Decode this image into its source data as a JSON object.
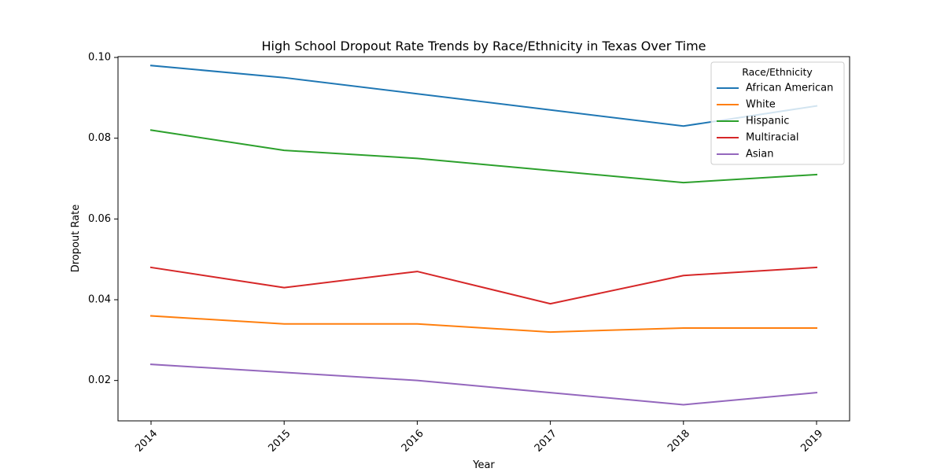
{
  "chart_data": {
    "type": "line",
    "title": "High School Dropout Rate Trends by Race/Ethnicity in Texas Over Time",
    "xlabel": "Year",
    "ylabel": "Dropout Rate",
    "x": [
      "2014",
      "2015",
      "2016",
      "2017",
      "2018",
      "2019"
    ],
    "y_ticks": [
      "0.02",
      "0.04",
      "0.06",
      "0.08",
      "0.10"
    ],
    "ylim": [
      0.01,
      0.1002
    ],
    "grid": false,
    "legend": {
      "title": "Race/Ethnicity",
      "placement": "top-right"
    },
    "series": [
      {
        "name": "African American",
        "color": "#1f77b4",
        "values": [
          0.098,
          0.095,
          0.091,
          0.087,
          0.083,
          0.088
        ]
      },
      {
        "name": "White",
        "color": "#ff7f0e",
        "values": [
          0.036,
          0.034,
          0.034,
          0.032,
          0.033,
          0.033
        ]
      },
      {
        "name": "Hispanic",
        "color": "#2ca02c",
        "values": [
          0.082,
          0.077,
          0.075,
          0.072,
          0.069,
          0.071
        ]
      },
      {
        "name": "Multiracial",
        "color": "#d62728",
        "values": [
          0.048,
          0.043,
          0.047,
          0.039,
          0.046,
          0.048
        ]
      },
      {
        "name": "Asian",
        "color": "#9467bd",
        "values": [
          0.024,
          0.022,
          0.02,
          0.017,
          0.014,
          0.017
        ]
      }
    ]
  }
}
